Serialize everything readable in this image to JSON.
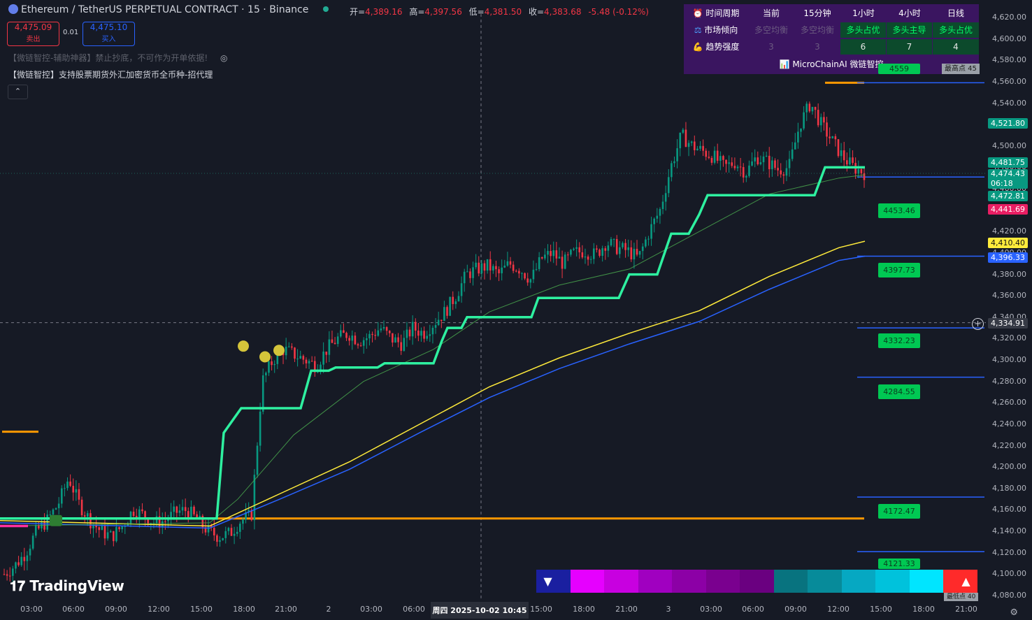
{
  "header": {
    "symbol_title": "Ethereum / TetherUS PERPETUAL CONTRACT · 15 · Binance",
    "open_label": "开=",
    "open": "4,389.16",
    "high_label": "高=",
    "high": "4,397.56",
    "low_label": "低=",
    "low": "4,381.50",
    "close_label": "收=",
    "close": "4,383.68",
    "change": "-5.48 (-0.12%)"
  },
  "trade": {
    "sell_price": "4,475.09",
    "sell_label": "卖出",
    "spread": "0.01",
    "buy_price": "4,475.10",
    "buy_label": "买入"
  },
  "indicators": {
    "line1": "【微链智控-辅助神器】禁止抄底，不可作为开单依据!",
    "line2": "【微链智控】支持股票期货外汇加密货币全币种-招代理"
  },
  "table": {
    "headers": [
      "时间周期",
      "当前",
      "15分钟",
      "1小时",
      "4小时",
      "日线"
    ],
    "row1_label": "市场倾向",
    "row1": [
      "多空均衡",
      "多空均衡",
      "多头占优",
      "多头主导",
      "多头占优"
    ],
    "row2_label": "趋势强度",
    "row2": [
      "3",
      "3",
      "6",
      "7",
      "4"
    ],
    "brand": "MicroChainAI 微链智控"
  },
  "y_axis": {
    "ticks": [
      "4,620.00",
      "4,600.00",
      "4,580.00",
      "4,560.00",
      "4,540.00",
      "4,520.00",
      "4,500.00",
      "4,480.00",
      "4,460.00",
      "4,440.00",
      "4,420.00",
      "4,400.00",
      "4,380.00",
      "4,360.00",
      "4,340.00",
      "4,320.00",
      "4,300.00",
      "4,280.00",
      "4,260.00",
      "4,240.00",
      "4,220.00",
      "4,200.00",
      "4,180.00",
      "4,160.00",
      "4,140.00",
      "4,120.00",
      "4,100.00",
      "4,080.00"
    ],
    "badges": {
      "b1": "4,521.80",
      "b2": "4,481.75",
      "b3": "4,474.43",
      "b3_time": "06:18",
      "b4": "4,472.81",
      "b5": "4,441.69",
      "b6": "4,410.40",
      "b7": "4,396.33",
      "b8": "4,334.91"
    }
  },
  "x_axis": {
    "labels": [
      "03:00",
      "06:00",
      "09:00",
      "12:00",
      "15:00",
      "18:00",
      "21:00",
      "2",
      "03:00",
      "06:00",
      "15:00",
      "18:00",
      "21:00",
      "3",
      "03:00",
      "06:00",
      "09:00",
      "12:00",
      "15:00",
      "18:00",
      "21:00"
    ],
    "crosshair_label": "周四 2025-10-02   10:45"
  },
  "levels": {
    "top_label": "4559",
    "top_tag": "最高点 45",
    "bottom_tag": "最低点 40",
    "labels": [
      "4453.46",
      "4397.73",
      "4332.23",
      "4284.55",
      "4172.47",
      "4121.33"
    ]
  },
  "branding": {
    "logo": "TradingView"
  },
  "chart_data": {
    "type": "candlestick",
    "title": "Ethereum / TetherUS PERPETUAL CONTRACT · 15 · Binance",
    "ylim": [
      4075,
      4630
    ],
    "close_path": [
      4100,
      4108,
      4120,
      4140,
      4150,
      4165,
      4190,
      4165,
      4150,
      4140,
      4135,
      4145,
      4160,
      4155,
      4148,
      4150,
      4158,
      4160,
      4150,
      4140,
      4135,
      4138,
      4150,
      4155,
      4280,
      4300,
      4310,
      4305,
      4300,
      4295,
      4310,
      4320,
      4325,
      4318,
      4322,
      4330,
      4320,
      4315,
      4330,
      4325,
      4335,
      4345,
      4360,
      4380,
      4385,
      4388,
      4380,
      4390,
      4385,
      4375,
      4395,
      4400,
      4390,
      4400,
      4402,
      4398,
      4410,
      4405,
      4402,
      4395,
      4420,
      4440,
      4480,
      4510,
      4500,
      4495,
      4490,
      4480,
      4485,
      4475,
      4490,
      4485,
      4478,
      4480,
      4520,
      4540,
      4520,
      4505,
      4490,
      4480,
      4475
    ],
    "supertrend": [
      [
        0,
        4152
      ],
      [
        310,
        4152
      ],
      [
        320,
        4232
      ],
      [
        345,
        4255
      ],
      [
        430,
        4255
      ],
      [
        445,
        4290
      ],
      [
        470,
        4290
      ],
      [
        480,
        4293
      ],
      [
        540,
        4293
      ],
      [
        550,
        4297
      ],
      [
        620,
        4297
      ],
      [
        632,
        4318
      ],
      [
        640,
        4330
      ],
      [
        660,
        4330
      ],
      [
        668,
        4340
      ],
      [
        760,
        4340
      ],
      [
        770,
        4358
      ],
      [
        885,
        4358
      ],
      [
        900,
        4380
      ],
      [
        940,
        4380
      ],
      [
        960,
        4418
      ],
      [
        985,
        4418
      ],
      [
        1000,
        4436
      ],
      [
        1012,
        4454
      ],
      [
        1165,
        4454
      ],
      [
        1180,
        4480
      ],
      [
        1237,
        4480
      ]
    ],
    "ema_fast": [
      [
        0,
        4145
      ],
      [
        300,
        4148
      ],
      [
        340,
        4170
      ],
      [
        420,
        4230
      ],
      [
        520,
        4280
      ],
      [
        620,
        4310
      ],
      [
        700,
        4345
      ],
      [
        800,
        4370
      ],
      [
        900,
        4385
      ],
      [
        1000,
        4420
      ],
      [
        1100,
        4455
      ],
      [
        1200,
        4470
      ],
      [
        1237,
        4473
      ]
    ],
    "ema_yellow": [
      [
        0,
        4150
      ],
      [
        300,
        4145
      ],
      [
        400,
        4175
      ],
      [
        500,
        4205
      ],
      [
        600,
        4240
      ],
      [
        700,
        4275
      ],
      [
        800,
        4302
      ],
      [
        900,
        4325
      ],
      [
        1000,
        4346
      ],
      [
        1100,
        4378
      ],
      [
        1200,
        4405
      ],
      [
        1237,
        4411
      ]
    ],
    "ema_blue": [
      [
        0,
        4148
      ],
      [
        300,
        4143
      ],
      [
        400,
        4170
      ],
      [
        500,
        4198
      ],
      [
        600,
        4232
      ],
      [
        700,
        4265
      ],
      [
        800,
        4292
      ],
      [
        900,
        4315
      ],
      [
        1000,
        4336
      ],
      [
        1100,
        4366
      ],
      [
        1200,
        4393
      ],
      [
        1237,
        4397
      ]
    ],
    "horizontal_levels": {
      "orange_long": 4152,
      "orange_short": 4233,
      "orange_top": 4559,
      "blue": [
        4559,
        4471,
        4397,
        4330,
        4284,
        4172,
        4121
      ]
    },
    "markers": {
      "yellow_dots": 3
    },
    "strip_colors": [
      "#1a1fa0",
      "#e600ff",
      "#c800e0",
      "#a000c0",
      "#8c00a6",
      "#7a008f",
      "#6a0080",
      "#08737f",
      "#078b9a",
      "#06a8c2",
      "#00c2dc",
      "#00e5ff",
      "#ff2a2a"
    ],
    "grid": false
  }
}
